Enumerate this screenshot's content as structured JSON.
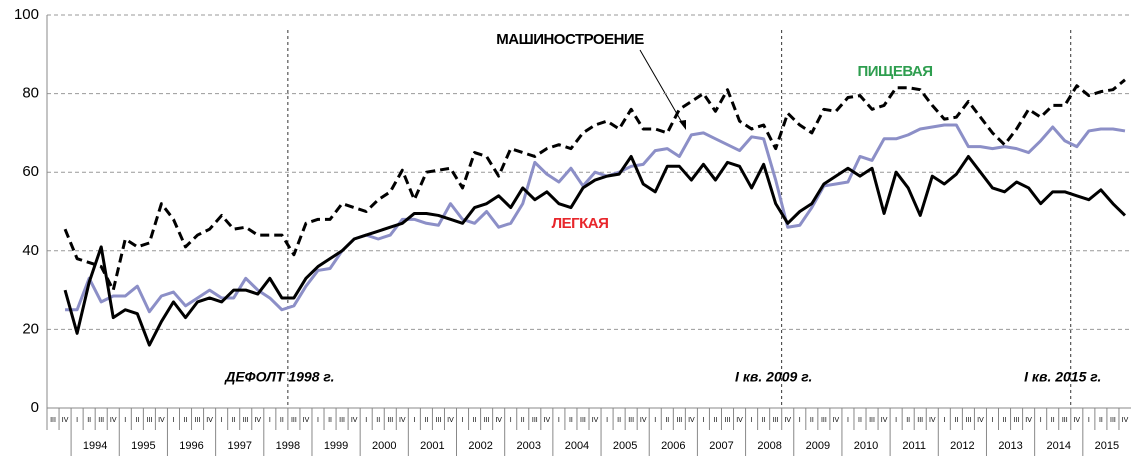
{
  "chart_data": {
    "type": "line",
    "categories": [
      "III",
      "IV",
      "I",
      "II",
      "III",
      "IV",
      "I",
      "II",
      "III",
      "IV",
      "I",
      "II",
      "III",
      "IV",
      "I",
      "II",
      "III",
      "IV",
      "I",
      "II",
      "III",
      "IV",
      "I",
      "II",
      "III",
      "IV",
      "I",
      "II",
      "III",
      "IV",
      "I",
      "II",
      "III",
      "IV",
      "I",
      "II",
      "III",
      "IV",
      "I",
      "II",
      "III",
      "IV",
      "I",
      "II",
      "III",
      "IV",
      "I",
      "II",
      "III",
      "IV",
      "I",
      "II",
      "III",
      "IV",
      "I",
      "II",
      "III",
      "IV",
      "I",
      "II",
      "III",
      "IV",
      "I",
      "II",
      "III",
      "IV",
      "I",
      "II",
      "III",
      "IV",
      "I",
      "II",
      "III",
      "IV",
      "I",
      "II",
      "III",
      "IV",
      "I",
      "II",
      "III",
      "IV",
      "I",
      "II",
      "III",
      "IV",
      "I",
      "II",
      "III",
      "IV"
    ],
    "years": [
      "1994",
      "1995",
      "1996",
      "1997",
      "1998",
      "1999",
      "2000",
      "2001",
      "2002",
      "2003",
      "2004",
      "2005",
      "2006",
      "2007",
      "2008",
      "2009",
      "2010",
      "2011",
      "2012",
      "2013",
      "2014",
      "2015"
    ],
    "series": [
      {
        "name": "МАШИНОСТРОЕНИЕ",
        "color": "#8c8fc7",
        "label_color": "#000000",
        "dash": false,
        "values": [
          null,
          25,
          25,
          33,
          27,
          28.5,
          28.5,
          31,
          24.5,
          28.5,
          29.5,
          26,
          28,
          30,
          28,
          28,
          33,
          30,
          28,
          25,
          26,
          31,
          35,
          35.5,
          40,
          43,
          44,
          43,
          44,
          48,
          48,
          47,
          46.5,
          52,
          48,
          47,
          50,
          46,
          47,
          52,
          62.5,
          59.5,
          57.5,
          61,
          56.5,
          60,
          59,
          60,
          61.5,
          62,
          65.5,
          66,
          64,
          69.5,
          70,
          68.5,
          67,
          65.5,
          69,
          68.5,
          58,
          46,
          46.5,
          51,
          56.5,
          57,
          57.5,
          64,
          63,
          68.5,
          68.5,
          69.5,
          71,
          71.5,
          72,
          72,
          66.5,
          66.5,
          66,
          66.5,
          66,
          65,
          68,
          71.5,
          68,
          66.5,
          70.5,
          71,
          71,
          70.5
        ]
      },
      {
        "name": "ПИЩЕВАЯ",
        "color": "#000000",
        "label_color": "#2e9e4f",
        "dash": true,
        "values": [
          null,
          45.5,
          38,
          37,
          36,
          30,
          43,
          41,
          42,
          52,
          48,
          41,
          44,
          45.5,
          49,
          45.5,
          46,
          44,
          44,
          44,
          39,
          47,
          48,
          48,
          52,
          51,
          50,
          53,
          55,
          60.5,
          53,
          60,
          60.5,
          61,
          56,
          65,
          64,
          59,
          66,
          65,
          64,
          66,
          67,
          66,
          70,
          72,
          73,
          71,
          76,
          71,
          71,
          70,
          76,
          78,
          80,
          75.5,
          81,
          73,
          71,
          72,
          66,
          75,
          72,
          70,
          76,
          75.5,
          79,
          79.5,
          76,
          77,
          81.5,
          81.5,
          81,
          77,
          73.5,
          74,
          78,
          74,
          70,
          67,
          71,
          76,
          74,
          77,
          77,
          82,
          79.5,
          80.5,
          81,
          83.5
        ]
      },
      {
        "name": "ЛЕГКАЯ",
        "color": "#000000",
        "label_color": "#e8262b",
        "dash": false,
        "values": [
          null,
          30,
          19,
          32,
          41,
          23,
          25,
          24,
          16,
          22,
          27,
          23,
          27,
          28,
          27,
          30,
          30,
          29,
          33,
          28,
          28,
          33,
          36,
          38,
          40,
          43,
          44,
          45,
          46,
          47,
          49.5,
          49.5,
          49,
          48,
          47,
          51,
          52,
          54,
          51,
          56,
          53,
          55,
          52,
          51,
          56,
          58,
          59,
          59.5,
          64,
          57,
          55,
          61.5,
          61.5,
          58,
          62,
          58,
          62.5,
          61.5,
          56,
          62,
          52,
          47,
          50,
          52,
          57,
          59,
          61,
          59,
          61,
          49.5,
          60,
          56,
          49,
          59,
          57,
          59.5,
          64,
          60,
          56,
          55,
          57.5,
          56,
          52,
          55,
          55,
          54,
          53,
          55.5,
          52,
          49
        ]
      }
    ],
    "events": [
      {
        "label": "ДЕФОЛТ 1998 г.",
        "index": 20
      },
      {
        "label": "I кв. 2009 г.",
        "index": 61
      },
      {
        "label": "I кв. 2015 г.",
        "index": 85
      }
    ],
    "ylim": [
      0,
      100
    ],
    "yticks": [
      0,
      20,
      40,
      60,
      80,
      100
    ],
    "grid": true
  }
}
